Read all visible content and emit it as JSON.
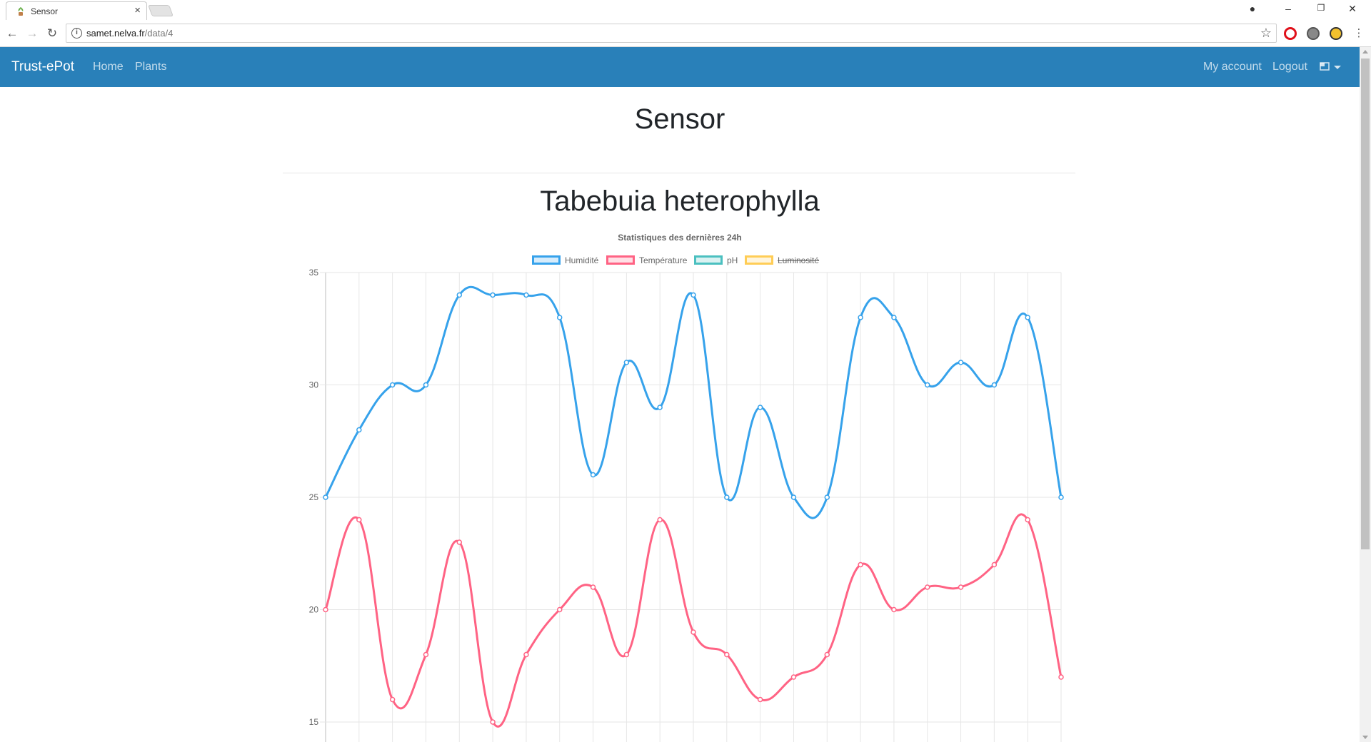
{
  "browser": {
    "tab_title": "Sensor",
    "url_host": "samet.nelva.fr",
    "url_path": "/data/4"
  },
  "navbar": {
    "brand": "Trust-ePot",
    "links": [
      "Home",
      "Plants"
    ],
    "right_links": [
      "My account",
      "Logout"
    ]
  },
  "page": {
    "title": "Sensor",
    "plant_name": "Tabebuia heterophylla"
  },
  "colors": {
    "navbar": "#2980b9",
    "humidity": "#36a2eb",
    "temperature": "#ff6384",
    "ph": "#4bc0c0",
    "luminosity": "#ffcd56"
  },
  "chart_data": {
    "type": "line",
    "title": "Statistiques des dernières 24h",
    "legend_position": "top",
    "grid": true,
    "ylim": [
      14,
      35
    ],
    "y_ticks": [
      35,
      30,
      25,
      20,
      15
    ],
    "point_count": 23,
    "series": [
      {
        "name": "Humidité",
        "color": "#36a2eb",
        "hidden": false,
        "values": [
          25,
          28,
          30,
          30,
          34,
          34,
          34,
          33,
          26,
          31,
          29,
          34,
          25,
          29,
          25,
          25,
          33,
          33,
          30,
          31,
          30,
          33,
          25
        ]
      },
      {
        "name": "Température",
        "color": "#ff6384",
        "hidden": false,
        "values": [
          20,
          24,
          16,
          18,
          23,
          15,
          18,
          20,
          21,
          18,
          24,
          19,
          18,
          16,
          17,
          18,
          22,
          20,
          21,
          21,
          22,
          24,
          17
        ]
      },
      {
        "name": "pH",
        "color": "#4bc0c0",
        "hidden": false,
        "values": []
      },
      {
        "name": "Luminosité",
        "color": "#ffcd56",
        "hidden": true,
        "values": []
      }
    ]
  }
}
